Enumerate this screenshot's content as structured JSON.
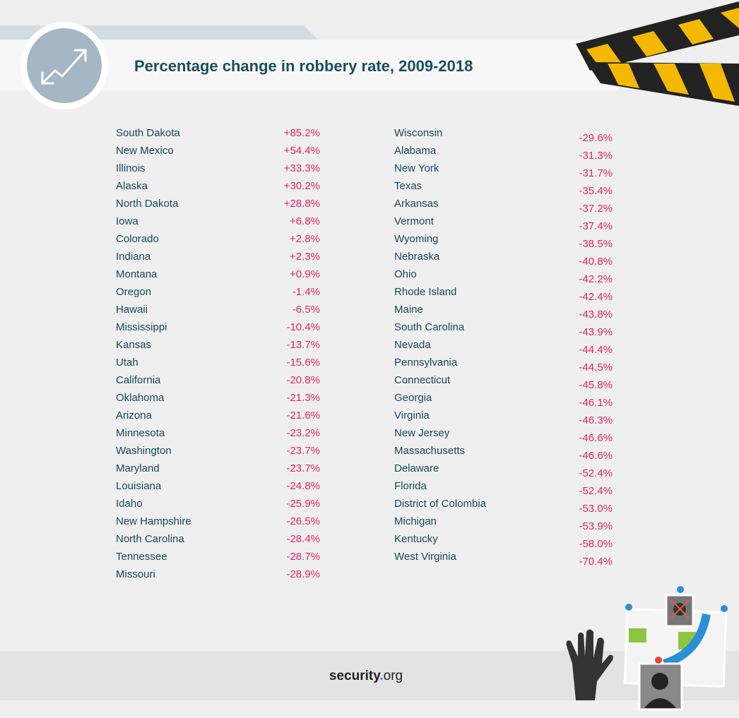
{
  "header": {
    "title": "Percentage change in robbery rate, 2009-2018"
  },
  "table": {
    "left": [
      [
        "South Dakota",
        "+85.2%"
      ],
      [
        "New Mexico",
        "+54.4%"
      ],
      [
        "Illinois",
        "+33.3%"
      ],
      [
        "Alaska",
        "+30.2%"
      ],
      [
        "North Dakota",
        "+28.8%"
      ],
      [
        "Iowa",
        "+6.8%"
      ],
      [
        "Colorado",
        "+2.8%"
      ],
      [
        "Indiana",
        "+2.3%"
      ],
      [
        "Montana",
        "+0.9%"
      ],
      [
        "Oregon",
        "-1.4%"
      ],
      [
        "Hawaii",
        "-6.5%"
      ],
      [
        "Mississippi",
        "-10.4%"
      ],
      [
        "Kansas",
        "-13.7%"
      ],
      [
        "Utah",
        "-15.6%"
      ],
      [
        "California",
        "-20.8%"
      ],
      [
        "Oklahoma",
        "-21.3%"
      ],
      [
        "Arizona",
        "-21.6%"
      ],
      [
        "Minnesota",
        "-23.2%"
      ],
      [
        "Washington",
        "-23.7%"
      ],
      [
        "Maryland",
        "-23.7%"
      ],
      [
        "Louisiana",
        "-24.8%"
      ],
      [
        "Idaho",
        "-25.9%"
      ],
      [
        "New Hampshire",
        "-26.5%"
      ],
      [
        "North Carolina",
        "-28.4%"
      ],
      [
        "Tennessee",
        "-28.7%"
      ],
      [
        "Missouri",
        "-28.9%"
      ]
    ],
    "right": [
      [
        "Wisconsin",
        "-29.6%"
      ],
      [
        "Alabama",
        "-31.3%"
      ],
      [
        "New York",
        "-31.7%"
      ],
      [
        "Texas",
        "-35.4%"
      ],
      [
        "Arkansas",
        "-37.2%"
      ],
      [
        "Vermont",
        "-37.4%"
      ],
      [
        "Wyoming",
        "-38.5%"
      ],
      [
        "Nebraska",
        "-40.8%"
      ],
      [
        "Ohio",
        "-42.2%"
      ],
      [
        "Rhode Island",
        "-42.4%"
      ],
      [
        "Maine",
        "-43.8%"
      ],
      [
        "South Carolina",
        "-43.9%"
      ],
      [
        "Nevada",
        "-44.4%"
      ],
      [
        "Pennsylvania",
        "-44.5%"
      ],
      [
        "Connecticut",
        "-45.8%"
      ],
      [
        "Georgia",
        "-46.1%"
      ],
      [
        "Virginia",
        "-46.3%"
      ],
      [
        "New Jersey",
        "-46.6%"
      ],
      [
        "Massachusetts",
        "-46.6%"
      ],
      [
        "Delaware",
        "-52.4%"
      ],
      [
        "Florida",
        "-52.4%"
      ],
      [
        "District of Colombia",
        "-53.0%"
      ],
      [
        "Michigan",
        "-53.9%"
      ],
      [
        "Kentucky",
        "-58.0%"
      ],
      [
        "West Virginia",
        "-70.4%"
      ]
    ]
  },
  "footer": {
    "brand": "security",
    "dot": ".",
    "tld": "org"
  }
}
